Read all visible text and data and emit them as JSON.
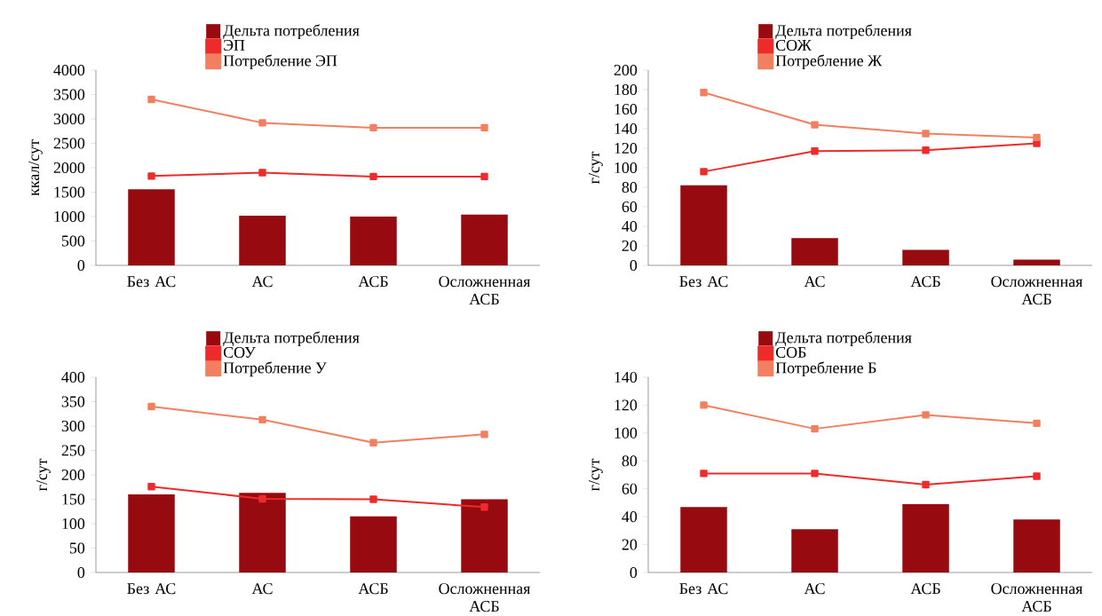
{
  "chart_data": [
    {
      "type": "bar",
      "ylabel": "ккал/сут",
      "categories": [
        "Без АС",
        "АС",
        "АСБ",
        "Осложненная АСБ"
      ],
      "ylim": [
        0,
        4000
      ],
      "yticks": [
        0,
        500,
        1000,
        1500,
        2000,
        2500,
        3000,
        3500,
        4000
      ],
      "legend": "top",
      "marker": "square",
      "series": [
        {
          "name": "Дельта потребления",
          "color": "#960a10",
          "values": [
            1560,
            1020,
            1000,
            1040
          ]
        },
        {
          "name": "ЭП",
          "type": "line",
          "color": "#ee2b2b",
          "values": [
            1830,
            1900,
            1820,
            1820
          ]
        },
        {
          "name": "Потребление ЭП",
          "type": "line",
          "color": "#f28060",
          "values": [
            3400,
            2920,
            2820,
            2820
          ]
        }
      ]
    },
    {
      "type": "bar",
      "ylabel": "г/сут",
      "categories": [
        "Без АС",
        "АС",
        "АСБ",
        "Осложненная АСБ"
      ],
      "ylim": [
        0,
        200
      ],
      "yticks": [
        0,
        20,
        40,
        60,
        80,
        100,
        120,
        140,
        160,
        180,
        200
      ],
      "legend": "top",
      "marker": "square",
      "series": [
        {
          "name": "Дельта потребления",
          "color": "#960a10",
          "values": [
            82,
            28,
            16,
            6
          ]
        },
        {
          "name": "СОЖ",
          "type": "line",
          "color": "#ee2b2b",
          "values": [
            96,
            117,
            118,
            125
          ]
        },
        {
          "name": "Потребление Ж",
          "type": "line",
          "color": "#f28060",
          "values": [
            177,
            144,
            135,
            131
          ]
        }
      ]
    },
    {
      "type": "bar",
      "ylabel": "г/сут",
      "categories": [
        "Без АС",
        "АС",
        "АСБ",
        "Осложненная АСБ"
      ],
      "ylim": [
        0,
        400
      ],
      "yticks": [
        0,
        50,
        100,
        150,
        200,
        250,
        300,
        350,
        400
      ],
      "legend": "top",
      "marker": "square",
      "series": [
        {
          "name": "Дельта потребления",
          "color": "#960a10",
          "values": [
            160,
            163,
            115,
            150
          ]
        },
        {
          "name": "СОУ",
          "type": "line",
          "color": "#ee2b2b",
          "values": [
            176,
            151,
            150,
            134
          ]
        },
        {
          "name": "Потребление У",
          "type": "line",
          "color": "#f28060",
          "values": [
            340,
            313,
            266,
            283
          ]
        }
      ]
    },
    {
      "type": "bar",
      "ylabel": "г/сут",
      "categories": [
        "Без АС",
        "АС",
        "АСБ",
        "Осложненная АСБ"
      ],
      "ylim": [
        0,
        140
      ],
      "yticks": [
        0,
        20,
        40,
        60,
        80,
        100,
        120,
        140
      ],
      "legend": "top",
      "marker": "square",
      "series": [
        {
          "name": "Дельта потребления",
          "color": "#960a10",
          "values": [
            47,
            31,
            49,
            38
          ]
        },
        {
          "name": "СОБ",
          "type": "line",
          "color": "#ee2b2b",
          "values": [
            71,
            71,
            63,
            69
          ]
        },
        {
          "name": "Потребление Б",
          "type": "line",
          "color": "#f28060",
          "values": [
            120,
            103,
            113,
            107
          ]
        }
      ]
    }
  ]
}
